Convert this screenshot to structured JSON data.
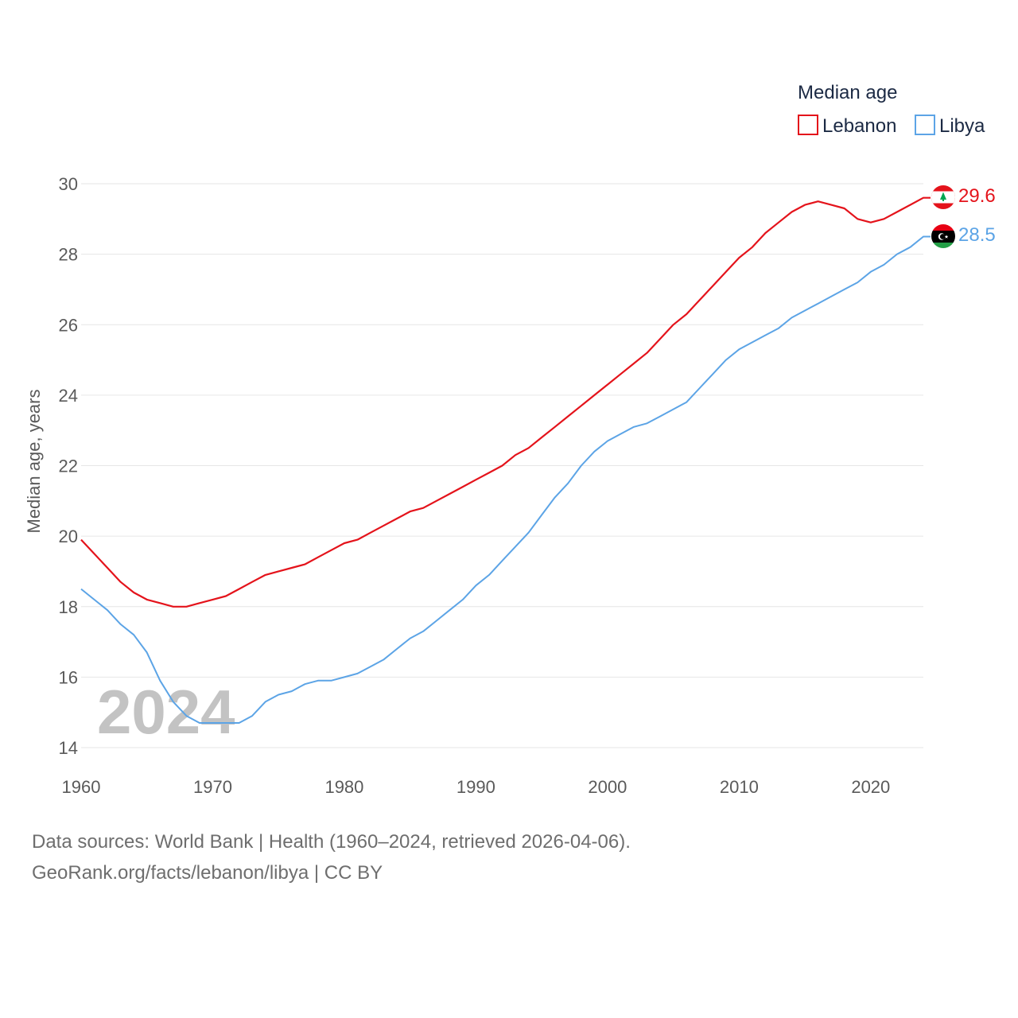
{
  "chart_data": {
    "type": "line",
    "title": "",
    "xlabel": "",
    "ylabel": "Median age, years",
    "xlim": [
      1960,
      2024
    ],
    "ylim": [
      14,
      30
    ],
    "x_ticks": [
      1960,
      1970,
      1980,
      1990,
      2000,
      2010,
      2020
    ],
    "y_ticks": [
      14,
      16,
      18,
      20,
      22,
      24,
      26,
      28,
      30
    ],
    "grid": true,
    "legend_title": "Median age",
    "legend_position": "top-right",
    "current_year_label": "2024",
    "series": [
      {
        "name": "Lebanon",
        "color": "#e4131b",
        "end_label": "29.6",
        "flag_icon": "lebanon-flag-icon",
        "years": [
          1960,
          1961,
          1962,
          1963,
          1964,
          1965,
          1966,
          1967,
          1968,
          1969,
          1970,
          1971,
          1972,
          1973,
          1974,
          1975,
          1976,
          1977,
          1978,
          1979,
          1980,
          1981,
          1982,
          1983,
          1984,
          1985,
          1986,
          1987,
          1988,
          1989,
          1990,
          1991,
          1992,
          1993,
          1994,
          1995,
          1996,
          1997,
          1998,
          1999,
          2000,
          2001,
          2002,
          2003,
          2004,
          2005,
          2006,
          2007,
          2008,
          2009,
          2010,
          2011,
          2012,
          2013,
          2014,
          2015,
          2016,
          2017,
          2018,
          2019,
          2020,
          2021,
          2022,
          2023,
          2024
        ],
        "values": [
          19.9,
          19.5,
          19.1,
          18.7,
          18.4,
          18.2,
          18.1,
          18.0,
          18.0,
          18.1,
          18.2,
          18.3,
          18.5,
          18.7,
          18.9,
          19.0,
          19.1,
          19.2,
          19.4,
          19.6,
          19.8,
          19.9,
          20.1,
          20.3,
          20.5,
          20.7,
          20.8,
          21.0,
          21.2,
          21.4,
          21.6,
          21.8,
          22.0,
          22.3,
          22.5,
          22.8,
          23.1,
          23.4,
          23.7,
          24.0,
          24.3,
          24.6,
          24.9,
          25.2,
          25.6,
          26.0,
          26.3,
          26.7,
          27.1,
          27.5,
          27.9,
          28.2,
          28.6,
          28.9,
          29.2,
          29.4,
          29.5,
          29.4,
          29.3,
          29.0,
          28.9,
          29.0,
          29.2,
          29.4,
          29.6
        ]
      },
      {
        "name": "Libya",
        "color": "#5ca4e6",
        "end_label": "28.5",
        "flag_icon": "libya-flag-icon",
        "years": [
          1960,
          1961,
          1962,
          1963,
          1964,
          1965,
          1966,
          1967,
          1968,
          1969,
          1970,
          1971,
          1972,
          1973,
          1974,
          1975,
          1976,
          1977,
          1978,
          1979,
          1980,
          1981,
          1982,
          1983,
          1984,
          1985,
          1986,
          1987,
          1988,
          1989,
          1990,
          1991,
          1992,
          1993,
          1994,
          1995,
          1996,
          1997,
          1998,
          1999,
          2000,
          2001,
          2002,
          2003,
          2004,
          2005,
          2006,
          2007,
          2008,
          2009,
          2010,
          2011,
          2012,
          2013,
          2014,
          2015,
          2016,
          2017,
          2018,
          2019,
          2020,
          2021,
          2022,
          2023,
          2024
        ],
        "values": [
          18.5,
          18.2,
          17.9,
          17.5,
          17.2,
          16.7,
          15.9,
          15.3,
          14.9,
          14.7,
          14.7,
          14.7,
          14.7,
          14.9,
          15.3,
          15.5,
          15.6,
          15.8,
          15.9,
          15.9,
          16.0,
          16.1,
          16.3,
          16.5,
          16.8,
          17.1,
          17.3,
          17.6,
          17.9,
          18.2,
          18.6,
          18.9,
          19.3,
          19.7,
          20.1,
          20.6,
          21.1,
          21.5,
          22.0,
          22.4,
          22.7,
          22.9,
          23.1,
          23.2,
          23.4,
          23.6,
          23.8,
          24.2,
          24.6,
          25.0,
          25.3,
          25.5,
          25.7,
          25.9,
          26.2,
          26.4,
          26.6,
          26.8,
          27.0,
          27.2,
          27.5,
          27.7,
          28.0,
          28.2,
          28.5
        ]
      }
    ]
  },
  "footer": {
    "source_line": "Data sources: World Bank | Health (1960–2024, retrieved 2026-04-06).",
    "credit_line": "GeoRank.org/facts/lebanon/libya | CC BY"
  }
}
